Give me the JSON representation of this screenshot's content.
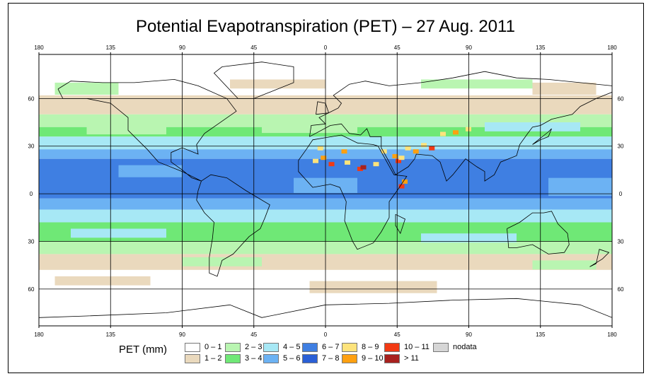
{
  "title": "Potential Evapotranspiration (PET) – 27 Aug. 2011",
  "lon_ticks": [
    "180",
    "135",
    "90",
    "45",
    "0",
    "45",
    "90",
    "135",
    "180"
  ],
  "lat_ticks": [
    "60",
    "30",
    "0",
    "30",
    "60"
  ],
  "legend": {
    "title": "PET (mm)",
    "items": [
      {
        "label": "0 – 1",
        "color": "#ffffff"
      },
      {
        "label": "1 – 2",
        "color": "#ead9bd"
      },
      {
        "label": "2 – 3",
        "color": "#b9f5b1"
      },
      {
        "label": "3 – 4",
        "color": "#6fe876"
      },
      {
        "label": "4 – 5",
        "color": "#a7e8f5"
      },
      {
        "label": "5 – 6",
        "color": "#6cb2f3"
      },
      {
        "label": "6 – 7",
        "color": "#3f7fe2"
      },
      {
        "label": "7 – 8",
        "color": "#2a5fd6"
      },
      {
        "label": "8 – 9",
        "color": "#fde37c"
      },
      {
        "label": "9 – 10",
        "color": "#ffa010"
      },
      {
        "label": "10 – 11",
        "color": "#f23a14"
      },
      {
        "label": "> 11",
        "color": "#a8211e"
      },
      {
        "label": "nodata",
        "color": "#d6d6d6"
      }
    ]
  }
}
